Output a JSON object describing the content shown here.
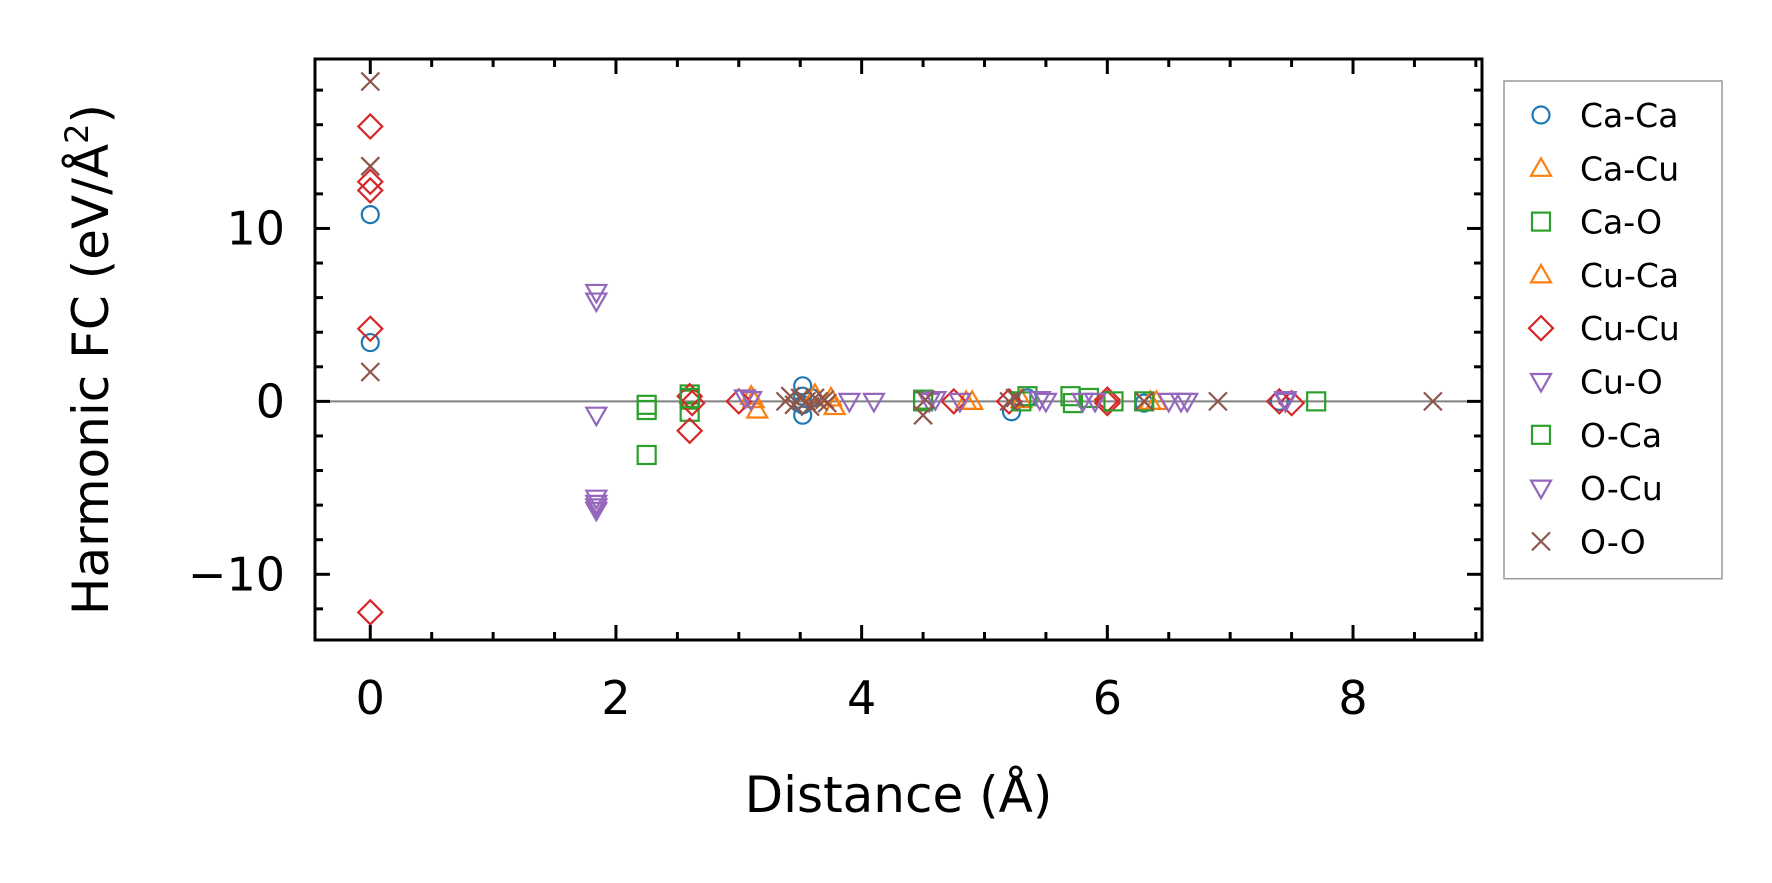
{
  "chart_data": {
    "type": "scatter",
    "xlabel": "Distance (Å)",
    "ylabel_prefix": "Harmonic FC (eV/Å",
    "ylabel_sup": "2",
    "ylabel_suffix": ")",
    "xlim": [
      -0.45,
      9.05
    ],
    "ylim": [
      -13.8,
      19.8
    ],
    "xticks": [
      0,
      2,
      4,
      6,
      8
    ],
    "xtick_labels": [
      "0",
      "2",
      "4",
      "6",
      "8"
    ],
    "yticks": [
      -10,
      0,
      10
    ],
    "ytick_labels": [
      "−10",
      "0",
      "10"
    ],
    "x_minor_step": 0.5,
    "y_minor_step": 2,
    "zero_line": true,
    "grid": false,
    "legend_placement": "outside-right",
    "series": [
      {
        "name": "Ca-Ca",
        "marker": "circle",
        "color": "#1f77b4",
        "points": [
          [
            0,
            10.8
          ],
          [
            0,
            3.4
          ],
          [
            3.52,
            0.9
          ],
          [
            3.52,
            -0.8
          ],
          [
            3.52,
            0.3
          ],
          [
            3.52,
            -0.2
          ],
          [
            3.6,
            0.2
          ],
          [
            5.22,
            -0.6
          ],
          [
            5.35,
            0.2
          ],
          [
            6.3,
            -0.1
          ],
          [
            7.4,
            0.0
          ]
        ]
      },
      {
        "name": "Ca-Cu",
        "marker": "triangle-up",
        "color": "#ff7f0e",
        "points": [
          [
            3.12,
            0.1
          ],
          [
            3.15,
            -0.5
          ],
          [
            3.78,
            -0.3
          ],
          [
            3.62,
            0.4
          ],
          [
            4.9,
            0.0
          ],
          [
            5.3,
            0.1
          ],
          [
            6.4,
            0.0
          ]
        ]
      },
      {
        "name": "Ca-O",
        "marker": "square",
        "color": "#2ca02c",
        "points": [
          [
            2.25,
            -0.2
          ],
          [
            2.25,
            -0.5
          ],
          [
            2.25,
            -3.1
          ],
          [
            2.6,
            0.4
          ],
          [
            2.6,
            -0.6
          ],
          [
            2.6,
            0.1
          ],
          [
            4.5,
            0.0
          ],
          [
            5.35,
            0.3
          ],
          [
            5.7,
            0.3
          ],
          [
            5.72,
            -0.1
          ],
          [
            5.85,
            0.2
          ],
          [
            7.7,
            0.0
          ]
        ]
      },
      {
        "name": "Cu-Ca",
        "marker": "triangle-up",
        "color": "#ff7f0e",
        "points": [
          [
            3.1,
            0.3
          ],
          [
            3.75,
            0.2
          ],
          [
            4.85,
            0.0
          ],
          [
            6.35,
            0.0
          ]
        ]
      },
      {
        "name": "Cu-Cu",
        "marker": "diamond",
        "color": "#d62728",
        "points": [
          [
            0,
            15.9
          ],
          [
            0,
            12.7
          ],
          [
            0,
            12.2
          ],
          [
            0,
            4.2
          ],
          [
            0,
            -12.2
          ],
          [
            2.6,
            0.3
          ],
          [
            2.6,
            -1.7
          ],
          [
            2.62,
            -0.1
          ],
          [
            3.0,
            0.0
          ],
          [
            4.75,
            0.0
          ],
          [
            5.2,
            0.0
          ],
          [
            6.0,
            0.1
          ],
          [
            6.0,
            -0.1
          ],
          [
            7.4,
            0.0
          ],
          [
            7.5,
            -0.1
          ]
        ]
      },
      {
        "name": "Cu-O",
        "marker": "triangle-down",
        "color": "#9467bd",
        "points": [
          [
            1.84,
            6.3
          ],
          [
            1.84,
            5.8
          ],
          [
            1.84,
            -0.8
          ],
          [
            1.84,
            -5.6
          ],
          [
            1.84,
            -6.1
          ],
          [
            1.84,
            -6.3
          ],
          [
            3.1,
            0.1
          ],
          [
            3.9,
            0.0
          ],
          [
            4.1,
            0.0
          ],
          [
            4.55,
            0.0
          ],
          [
            4.8,
            0.0
          ],
          [
            5.5,
            0.0
          ],
          [
            5.8,
            0.0
          ],
          [
            6.5,
            0.0
          ],
          [
            6.6,
            0.0
          ],
          [
            6.65,
            0.0
          ],
          [
            7.45,
            0.1
          ]
        ]
      },
      {
        "name": "O-Ca",
        "marker": "square",
        "color": "#2ca02c",
        "points": [
          [
            2.6,
            0.2
          ],
          [
            4.5,
            0.1
          ],
          [
            5.3,
            0.0
          ],
          [
            6.05,
            0.0
          ],
          [
            6.3,
            0.0
          ]
        ]
      },
      {
        "name": "O-Cu",
        "marker": "triangle-down",
        "color": "#9467bd",
        "points": [
          [
            1.84,
            -5.9
          ],
          [
            3.05,
            0.2
          ],
          [
            4.6,
            0.1
          ],
          [
            5.45,
            0.1
          ],
          [
            5.9,
            0.0
          ],
          [
            7.45,
            0.0
          ]
        ]
      },
      {
        "name": "O-O",
        "marker": "x",
        "color": "#8c564b",
        "points": [
          [
            0,
            18.5
          ],
          [
            0,
            13.6
          ],
          [
            0,
            1.7
          ],
          [
            3.38,
            0.0
          ],
          [
            3.42,
            0.3
          ],
          [
            3.45,
            -0.2
          ],
          [
            3.5,
            0.2
          ],
          [
            3.55,
            0.0
          ],
          [
            3.58,
            -0.3
          ],
          [
            3.62,
            0.2
          ],
          [
            3.65,
            0.0
          ],
          [
            3.7,
            0.1
          ],
          [
            3.72,
            -0.1
          ],
          [
            4.5,
            -0.8
          ],
          [
            4.52,
            0.1
          ],
          [
            5.2,
            0.0
          ],
          [
            5.25,
            0.2
          ],
          [
            6.3,
            0.0
          ],
          [
            6.9,
            0.0
          ],
          [
            8.65,
            0.0
          ]
        ]
      }
    ]
  }
}
